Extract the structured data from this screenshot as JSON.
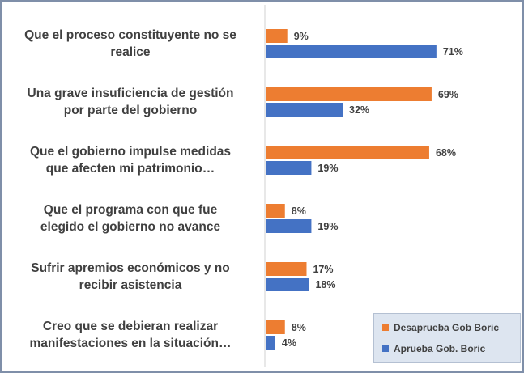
{
  "chart_data": {
    "type": "bar",
    "orientation": "horizontal",
    "categories": [
      "Que el proceso constituyente no se realice",
      "Una grave insuficiencia de gestión por parte del gobierno",
      "Que el gobierno impulse medidas que afecten mi patrimonio…",
      "Que el programa con que fue elegido el gobierno no avance",
      "Sufrir apremios económicos y no recibir asistencia",
      "Creo que se debieran realizar manifestaciones en la situación…"
    ],
    "category_lines": [
      [
        "Que el proceso constituyente no se",
        "realice"
      ],
      [
        "Una grave insuficiencia de gestión",
        "por parte del gobierno"
      ],
      [
        "Que el gobierno impulse medidas",
        "que afecten mi patrimonio…"
      ],
      [
        "Que el programa con que fue",
        "elegido el gobierno no avance"
      ],
      [
        "Sufrir apremios económicos y no",
        "recibir asistencia"
      ],
      [
        "Creo que se debieran realizar",
        "manifestaciones en la situación…"
      ]
    ],
    "series": [
      {
        "name": "Desaprueba Gob Boric",
        "color": "#ed7d31",
        "values": [
          9,
          69,
          68,
          8,
          17,
          8
        ],
        "labels": [
          "9%",
          "69%",
          "68%",
          "8%",
          "17%",
          "8%"
        ]
      },
      {
        "name": "Aprueba Gob. Boric",
        "color": "#4472c4",
        "values": [
          71,
          32,
          19,
          19,
          18,
          4
        ],
        "labels": [
          "71%",
          "32%",
          "19%",
          "19%",
          "18%",
          "4%"
        ]
      }
    ],
    "xlim": [
      0,
      100
    ],
    "grid": false,
    "legend_position": "bottom-right"
  }
}
